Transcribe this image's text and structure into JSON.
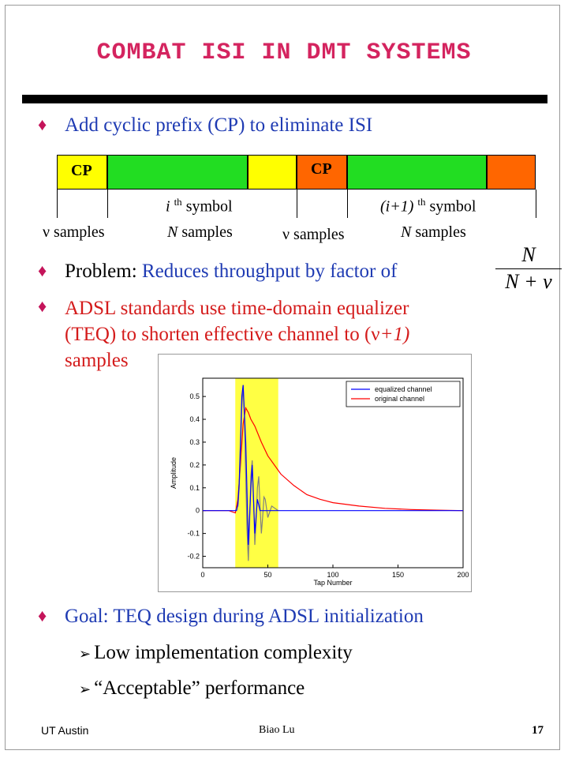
{
  "title": "COMBAT ISI IN DMT SYSTEMS",
  "bullets": {
    "cp": "Add cyclic prefix (CP) to eliminate ISI",
    "problem_prefix": "Problem: ",
    "problem_text": "Reduces throughput by factor of",
    "adsl_line1": "ADSL standards use time-domain equalizer",
    "adsl_line2": "(TEQ) to shorten effective channel to (",
    "adsl_nu": "ν",
    "adsl_plus": "+1)",
    "adsl_line3": "samples",
    "goal_prefix": "Goal",
    "goal_text": ": TEQ design during ADSL initialization",
    "sub1": "Low implementation complexity",
    "sub2": "“Acceptable” performance"
  },
  "fraction": {
    "num": "N",
    "den_a": "N + ",
    "den_nu": "ν"
  },
  "diagram": {
    "cp1": "CP",
    "cp2": "CP",
    "nu": "ν",
    "samples": "samples",
    "i_sym": "i",
    "th": "th",
    "symbol": "symbol",
    "ip1_sym": "(i+1)",
    "N": "N",
    "colors": {
      "yellow": "#ffff00",
      "green": "#22dd22",
      "orange": "#ff6600"
    }
  },
  "chart_data": {
    "type": "line",
    "xlabel": "Tap Number",
    "ylabel": "Amplitude",
    "xlim": [
      0,
      200
    ],
    "ylim": [
      -0.25,
      0.58
    ],
    "xticks": [
      "0",
      "50",
      "100",
      "150",
      "200"
    ],
    "yticks": [
      "-0.2",
      "-0.1",
      "0",
      "0.1",
      "0.2",
      "0.3",
      "0.4",
      "0.5"
    ],
    "highlight_range": [
      25,
      58
    ],
    "legend": [
      "equalized channel",
      "original channel"
    ],
    "legend_position": "top-right",
    "series": [
      {
        "name": "equalized channel",
        "color": "#0000ff",
        "x": [
          0,
          20,
          26,
          27,
          28,
          29,
          30,
          31,
          33,
          35,
          37,
          38,
          40,
          42,
          44,
          46,
          50,
          55,
          60,
          80,
          120,
          160,
          200
        ],
        "y": [
          0,
          0,
          0,
          0.03,
          0.12,
          0.3,
          0.5,
          0.55,
          0.3,
          -0.15,
          0.1,
          0.2,
          -0.1,
          0.05,
          0.0,
          0.0,
          0,
          0,
          0,
          0,
          0,
          0,
          0
        ]
      },
      {
        "name": "original channel",
        "color": "#ff0000",
        "x": [
          0,
          20,
          25,
          27,
          29,
          31,
          33,
          35,
          37,
          40,
          45,
          50,
          55,
          60,
          70,
          80,
          90,
          100,
          120,
          140,
          160,
          180,
          200
        ],
        "y": [
          0,
          0,
          -0.01,
          0.05,
          0.2,
          0.38,
          0.45,
          0.43,
          0.4,
          0.37,
          0.3,
          0.24,
          0.2,
          0.16,
          0.11,
          0.07,
          0.05,
          0.035,
          0.02,
          0.01,
          0.005,
          0.002,
          0
        ]
      },
      {
        "name": "",
        "color": "#808080",
        "x": [
          25,
          27,
          28,
          29,
          30,
          31,
          32,
          33,
          34,
          35,
          36,
          37,
          38,
          39,
          40,
          41,
          42,
          43,
          44,
          45,
          46,
          47,
          48,
          50,
          53,
          58
        ],
        "y": [
          0,
          0.02,
          0.1,
          0.25,
          0.45,
          0.55,
          0.4,
          0.15,
          -0.08,
          -0.22,
          -0.05,
          0.15,
          0.22,
          0.05,
          -0.15,
          -0.05,
          0.1,
          0.15,
          0.02,
          -0.1,
          -0.03,
          0.06,
          0.05,
          -0.03,
          0.02,
          0
        ]
      }
    ]
  },
  "footer": {
    "left": "UT Austin",
    "center": "Biao Lu",
    "page": "17"
  }
}
